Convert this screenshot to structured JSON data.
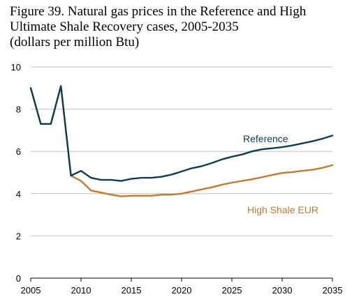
{
  "chart_data": {
    "type": "line",
    "title_lines": [
      "Figure 39. Natural gas prices in the Reference and High",
      "Ultimate Shale Recovery cases, 2005-2035",
      "(dollars per million Btu)"
    ],
    "xlim": [
      2005,
      2035
    ],
    "ylim": [
      0,
      10
    ],
    "x_ticks": [
      2005,
      2010,
      2015,
      2020,
      2025,
      2030,
      2035
    ],
    "y_ticks": [
      0,
      2,
      4,
      6,
      8,
      10
    ],
    "grid": "horizontal",
    "x": [
      2005,
      2006,
      2007,
      2008,
      2009,
      2010,
      2011,
      2012,
      2013,
      2014,
      2015,
      2016,
      2017,
      2018,
      2019,
      2020,
      2021,
      2022,
      2023,
      2024,
      2025,
      2026,
      2027,
      2028,
      2029,
      2030,
      2031,
      2032,
      2033,
      2034,
      2035
    ],
    "series": [
      {
        "name": "Reference",
        "color": "#0f3d50",
        "values": [
          9.0,
          7.3,
          7.3,
          9.1,
          4.85,
          5.08,
          4.75,
          4.65,
          4.65,
          4.6,
          4.7,
          4.75,
          4.75,
          4.8,
          4.9,
          5.05,
          5.2,
          5.3,
          5.45,
          5.62,
          5.75,
          5.85,
          6.0,
          6.1,
          6.15,
          6.2,
          6.28,
          6.38,
          6.48,
          6.6,
          6.75
        ]
      },
      {
        "name": "High Shale EUR",
        "color": "#c07a34",
        "values": [
          9.0,
          7.3,
          7.3,
          9.1,
          4.85,
          4.6,
          4.15,
          4.05,
          3.95,
          3.87,
          3.9,
          3.9,
          3.9,
          3.95,
          3.95,
          4.0,
          4.1,
          4.2,
          4.3,
          4.42,
          4.52,
          4.6,
          4.68,
          4.78,
          4.88,
          4.98,
          5.02,
          5.08,
          5.13,
          5.22,
          5.35
        ]
      }
    ]
  }
}
